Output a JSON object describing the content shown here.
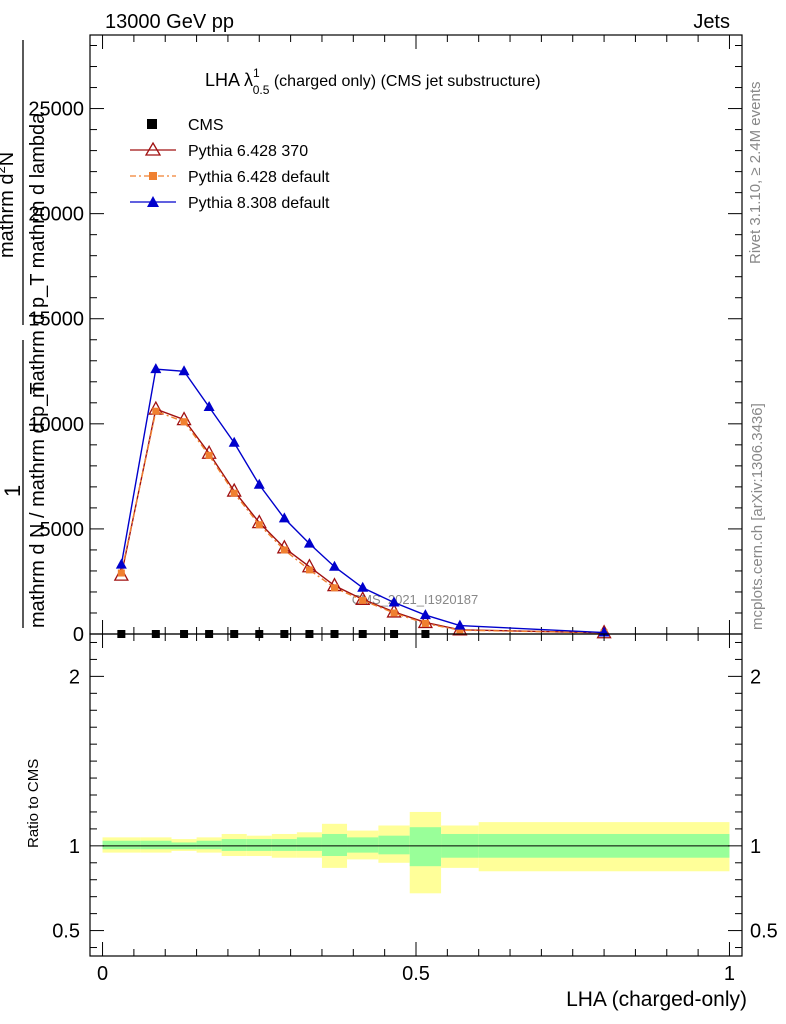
{
  "header": {
    "left": "13000 GeV pp",
    "right": "Jets"
  },
  "side_labels": {
    "top": "Rivet 3.1.10, ≥ 2.4M events",
    "bottom": "mcplots.cern.ch [arXiv:1306.3436]"
  },
  "watermark": "CMS_2021_I1920187",
  "chart_data": [
    {
      "type": "line",
      "title": "LHA λ¹0.5 (charged only) (CMS jet substructure)",
      "title_main": "LHA λ",
      "title_sup": "1",
      "title_sub": "0.5",
      "title_rest": " (charged only) (CMS jet substructure)",
      "ylabel_numerator": "mathrm d²N",
      "ylabel_numerator_base": "mathrm d",
      "ylabel_numerator_sup": "2",
      "ylabel_numerator_rest": "N",
      "ylabel_denominator": "mathrm d p_T mathrm d lambda",
      "ylabel_prefactor": "1",
      "ylabel_frac": "mathrm d N / mathrm d p_T",
      "ylim": [
        0,
        28500
      ],
      "xlim": [
        -0.02,
        1.02
      ],
      "y_ticks": [
        0,
        5000,
        10000,
        15000,
        20000,
        25000
      ],
      "y_tick_labels": [
        "0",
        "5000",
        "10000",
        "15000",
        "20000",
        "25000"
      ],
      "legend_position": "top-left",
      "series": [
        {
          "name": "CMS",
          "x": [
            0.03,
            0.085,
            0.13,
            0.17,
            0.21,
            0.25,
            0.29,
            0.33,
            0.37,
            0.415,
            0.465,
            0.515
          ],
          "values": [
            0,
            0,
            0,
            0,
            0,
            0,
            0,
            0,
            0,
            0,
            0,
            0
          ]
        },
        {
          "name": "Pythia 6.428 370",
          "x": [
            0.03,
            0.085,
            0.13,
            0.17,
            0.21,
            0.25,
            0.29,
            0.33,
            0.37,
            0.415,
            0.465,
            0.515,
            0.57,
            0.8
          ],
          "values": [
            2800,
            10700,
            10200,
            8600,
            6800,
            5300,
            4100,
            3200,
            2300,
            1650,
            1050,
            550,
            200,
            60
          ]
        },
        {
          "name": "Pythia 6.428 default",
          "x": [
            0.03,
            0.085,
            0.13,
            0.17,
            0.21,
            0.25,
            0.29,
            0.33,
            0.37,
            0.415,
            0.465,
            0.515,
            0.57,
            0.8
          ],
          "values": [
            2900,
            10600,
            10100,
            8500,
            6700,
            5200,
            4000,
            3050,
            2200,
            1600,
            1000,
            500,
            180,
            55
          ]
        },
        {
          "name": "Pythia 8.308 default",
          "x": [
            0.03,
            0.085,
            0.13,
            0.17,
            0.21,
            0.25,
            0.29,
            0.33,
            0.37,
            0.415,
            0.465,
            0.515,
            0.57,
            0.8
          ],
          "values": [
            3300,
            12600,
            12500,
            10800,
            9100,
            7100,
            5500,
            4300,
            3200,
            2200,
            1500,
            900,
            400,
            70
          ]
        }
      ]
    },
    {
      "type": "area",
      "ylabel": "Ratio to CMS",
      "xlabel": "LHA (charged-only)",
      "xlim": [
        -0.02,
        1.02
      ],
      "ylim": [
        0.35,
        2.25
      ],
      "y_ticks": [
        0.5,
        1,
        2
      ],
      "y_tick_labels": [
        "0.5",
        "1",
        "2"
      ],
      "x_ticks": [
        0,
        0.5,
        1
      ],
      "x_tick_labels": [
        "0",
        "0.5",
        "1"
      ],
      "bins": [
        {
          "lo": 0.0,
          "hi": 0.06,
          "inner": [
            0.98,
            1.03
          ],
          "outer": [
            0.96,
            1.05
          ]
        },
        {
          "lo": 0.06,
          "hi": 0.11,
          "inner": [
            0.98,
            1.03
          ],
          "outer": [
            0.96,
            1.05
          ]
        },
        {
          "lo": 0.11,
          "hi": 0.15,
          "inner": [
            0.98,
            1.02
          ],
          "outer": [
            0.97,
            1.04
          ]
        },
        {
          "lo": 0.15,
          "hi": 0.19,
          "inner": [
            0.98,
            1.03
          ],
          "outer": [
            0.96,
            1.05
          ]
        },
        {
          "lo": 0.19,
          "hi": 0.23,
          "inner": [
            0.97,
            1.04
          ],
          "outer": [
            0.94,
            1.07
          ]
        },
        {
          "lo": 0.23,
          "hi": 0.27,
          "inner": [
            0.97,
            1.04
          ],
          "outer": [
            0.94,
            1.06
          ]
        },
        {
          "lo": 0.27,
          "hi": 0.31,
          "inner": [
            0.97,
            1.04
          ],
          "outer": [
            0.93,
            1.07
          ]
        },
        {
          "lo": 0.31,
          "hi": 0.35,
          "inner": [
            0.97,
            1.05
          ],
          "outer": [
            0.93,
            1.08
          ]
        },
        {
          "lo": 0.35,
          "hi": 0.39,
          "inner": [
            0.94,
            1.07
          ],
          "outer": [
            0.87,
            1.13
          ]
        },
        {
          "lo": 0.39,
          "hi": 0.44,
          "inner": [
            0.96,
            1.05
          ],
          "outer": [
            0.92,
            1.09
          ]
        },
        {
          "lo": 0.44,
          "hi": 0.49,
          "inner": [
            0.95,
            1.06
          ],
          "outer": [
            0.9,
            1.12
          ]
        },
        {
          "lo": 0.49,
          "hi": 0.54,
          "inner": [
            0.88,
            1.11
          ],
          "outer": [
            0.72,
            1.2
          ]
        },
        {
          "lo": 0.54,
          "hi": 0.6,
          "inner": [
            0.93,
            1.07
          ],
          "outer": [
            0.87,
            1.12
          ]
        },
        {
          "lo": 0.6,
          "hi": 1.0,
          "inner": [
            0.93,
            1.07
          ],
          "outer": [
            0.85,
            1.14
          ]
        }
      ]
    }
  ],
  "colors": {
    "cms": "#000000",
    "pythia6_370": "#a01010",
    "pythia6_default": "#f08030",
    "pythia8": "#0000cc",
    "band_inner": "#99ff99",
    "band_outer": "#ffff99"
  }
}
